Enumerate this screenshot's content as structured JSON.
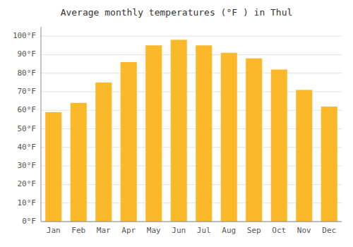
{
  "chart_data": {
    "type": "bar",
    "title": "Average monthly temperatures (°F ) in Thul",
    "categories": [
      "Jan",
      "Feb",
      "Mar",
      "Apr",
      "May",
      "Jun",
      "Jul",
      "Aug",
      "Sep",
      "Oct",
      "Nov",
      "Dec"
    ],
    "values": [
      59,
      64,
      75,
      86,
      95,
      98,
      95,
      91,
      88,
      82,
      71,
      62
    ],
    "color": "#FBB829",
    "ylim": [
      0,
      105
    ],
    "yticks": [
      {
        "value": 0,
        "label": "0°F"
      },
      {
        "value": 10,
        "label": "10°F"
      },
      {
        "value": 20,
        "label": "20°F"
      },
      {
        "value": 30,
        "label": "30°F"
      },
      {
        "value": 40,
        "label": "40°F"
      },
      {
        "value": 50,
        "label": "50°F"
      },
      {
        "value": 60,
        "label": "60°F"
      },
      {
        "value": 70,
        "label": "70°F"
      },
      {
        "value": 80,
        "label": "80°F"
      },
      {
        "value": 90,
        "label": "90°F"
      },
      {
        "value": 100,
        "label": "100°F"
      }
    ],
    "grid": true
  }
}
